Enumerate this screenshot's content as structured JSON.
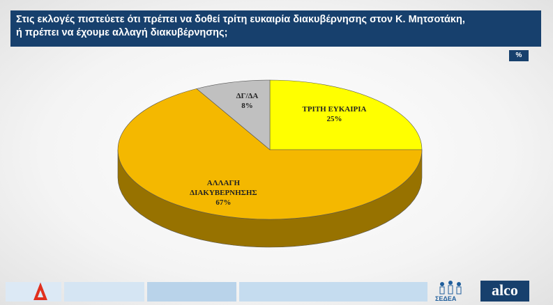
{
  "chart_data": {
    "type": "pie",
    "title": "Στις εκλογές πιστεύετε ότι πρέπει να δοθεί τρίτη ευκαιρία διακυβέρνησης στον Κ. Μητσοτάκη,\nή πρέπει να έχουμε αλλαγή  διακυβέρνησης;",
    "unit_badge": "%",
    "categories": [
      "ΤΡΙΤΗ ΕΥΚΑΙΡΙΑ",
      "ΑΛΛΑΓΗ ΔΙΑΚΥΒΕΡΝΗΣΗΣ",
      "ΔΓ/ΔΑ"
    ],
    "values": [
      25,
      67,
      8
    ],
    "value_labels": [
      "25%",
      "67%",
      "8%"
    ],
    "colors": [
      "#ffff00",
      "#f4b800",
      "#c0c0c0"
    ]
  },
  "footer": {
    "logo_left": "ΣΕΔΕΑ",
    "logo_right": "alco"
  }
}
